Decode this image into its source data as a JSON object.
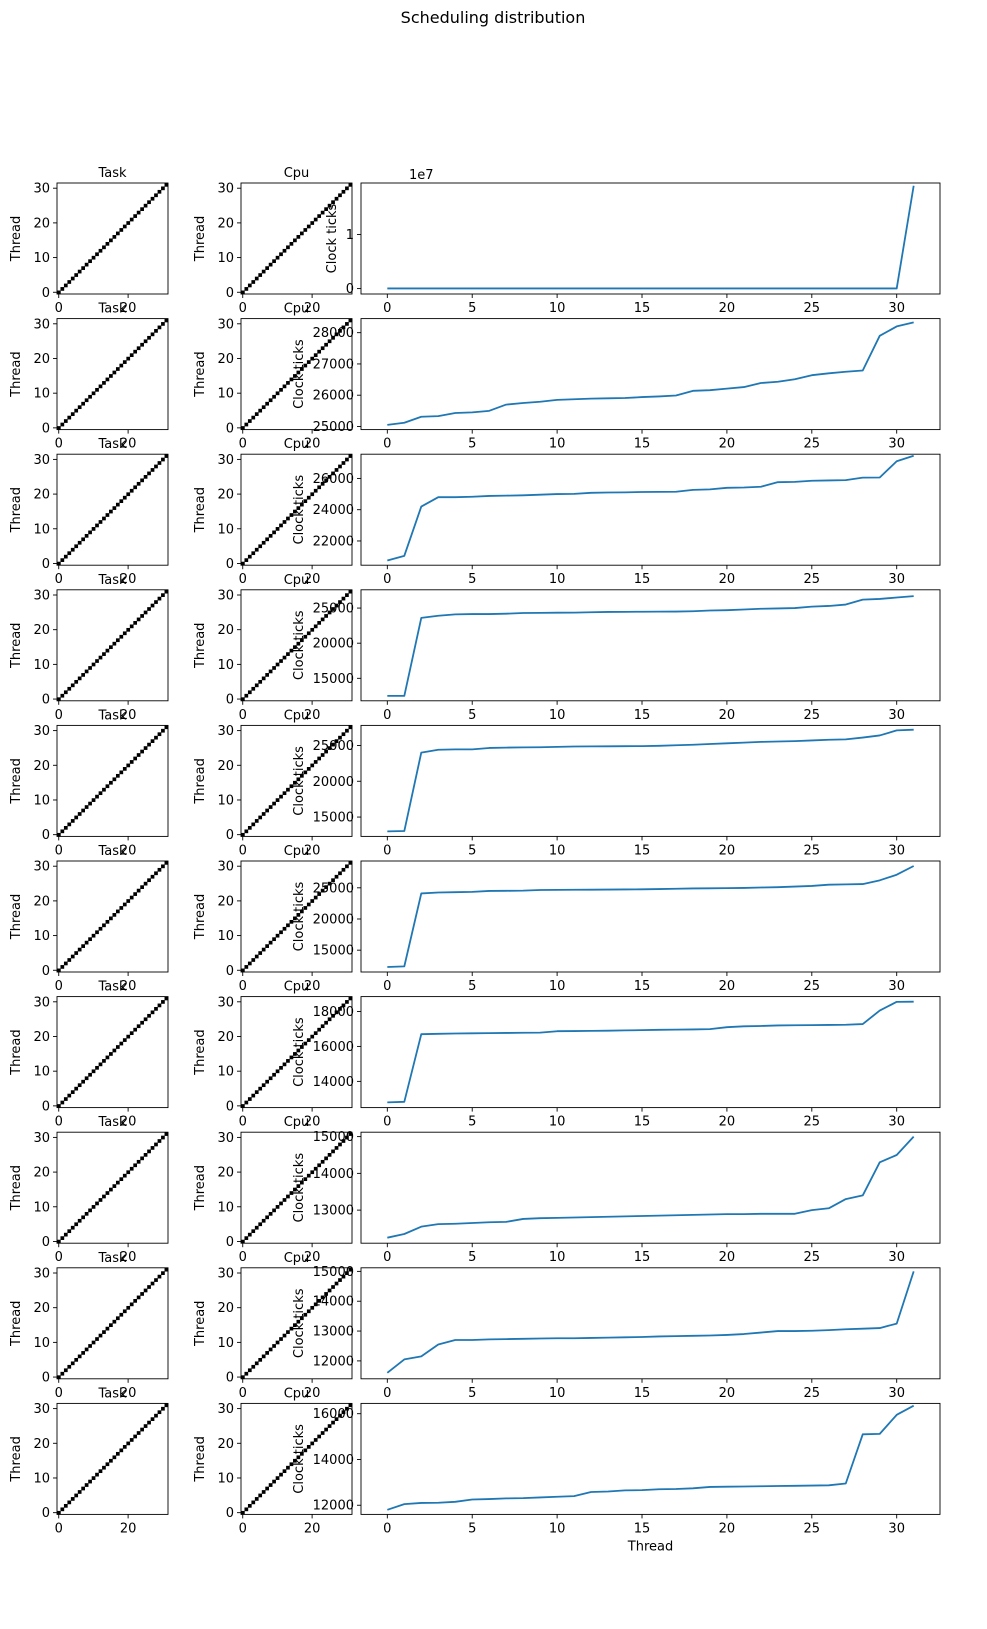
{
  "figure": {
    "suptitle": "Scheduling distribution"
  },
  "chart_data": {
    "type": "composite",
    "rows": [
      {
        "task": {
          "type": "heatmap",
          "title": "Task",
          "ylabel": "Thread",
          "matrix": "identity",
          "size": 32,
          "xticks": [
            0,
            20
          ],
          "yticks": [
            0,
            10,
            20,
            30
          ]
        },
        "cpu": {
          "type": "heatmap",
          "title": "Cpu",
          "ylabel": "Thread",
          "matrix": "identity",
          "size": 32,
          "xticks": [
            0,
            20
          ],
          "yticks": [
            0,
            10,
            20,
            30
          ]
        },
        "ticks": {
          "type": "line",
          "ylabel": "Clock ticks",
          "offset_text": "1e7",
          "ylim": [
            -0.1,
            1.95
          ],
          "yticks": [
            0,
            1
          ],
          "xlim": [
            -1.55,
            32.55
          ],
          "xticks": [
            0,
            5,
            10,
            15,
            20,
            25,
            30
          ],
          "y": [
            0.0025,
            0.0025,
            0.0025,
            0.0025,
            0.0025,
            0.0025,
            0.0025,
            0.0025,
            0.0025,
            0.0025,
            0.0025,
            0.0025,
            0.0025,
            0.0025,
            0.0025,
            0.0025,
            0.0025,
            0.0025,
            0.0025,
            0.0025,
            0.0025,
            0.0025,
            0.0025,
            0.0025,
            0.0025,
            0.0025,
            0.0025,
            0.0025,
            0.0025,
            0.0025,
            0.0025,
            1.9
          ]
        }
      },
      {
        "task": {
          "type": "heatmap",
          "title": "Task",
          "ylabel": "Thread",
          "matrix": "identity",
          "size": 32,
          "xticks": [
            0,
            20
          ],
          "yticks": [
            0,
            10,
            20,
            30
          ]
        },
        "cpu": {
          "type": "heatmap",
          "title": "Cpu",
          "ylabel": "Thread",
          "matrix": "identity",
          "size": 32,
          "xticks": [
            0,
            20
          ],
          "yticks": [
            0,
            10,
            20,
            30
          ]
        },
        "ticks": {
          "type": "line",
          "ylabel": "Clock ticks",
          "ylim": [
            24900,
            28450
          ],
          "yticks": [
            25000,
            26000,
            27000,
            28000
          ],
          "xlim": [
            -1.55,
            32.55
          ],
          "xticks": [
            0,
            5,
            10,
            15,
            20,
            25,
            30
          ],
          "y": [
            25050,
            25120,
            25310,
            25330,
            25430,
            25450,
            25500,
            25700,
            25750,
            25790,
            25850,
            25870,
            25890,
            25900,
            25910,
            25940,
            25960,
            25990,
            26140,
            26160,
            26210,
            26260,
            26390,
            26430,
            26510,
            26640,
            26700,
            26750,
            26790,
            27900,
            28200,
            28330
          ]
        }
      },
      {
        "task": {
          "type": "heatmap",
          "title": "Task",
          "ylabel": "Thread",
          "matrix": "identity",
          "size": 32,
          "xticks": [
            0,
            20
          ],
          "yticks": [
            0,
            10,
            20,
            30
          ]
        },
        "cpu": {
          "type": "heatmap",
          "title": "Cpu",
          "ylabel": "Thread",
          "matrix": "identity",
          "size": 32,
          "xticks": [
            0,
            20
          ],
          "yticks": [
            0,
            10,
            20,
            30
          ]
        },
        "ticks": {
          "type": "line",
          "ylabel": "Clock ticks",
          "ylim": [
            20450,
            27550
          ],
          "yticks": [
            22000,
            24000,
            26000
          ],
          "xlim": [
            -1.55,
            32.55
          ],
          "xticks": [
            0,
            5,
            10,
            15,
            20,
            25,
            30
          ],
          "y": [
            20750,
            21050,
            24200,
            24800,
            24800,
            24830,
            24880,
            24900,
            24920,
            24960,
            25000,
            25010,
            25080,
            25100,
            25110,
            25130,
            25140,
            25150,
            25270,
            25300,
            25400,
            25420,
            25470,
            25760,
            25780,
            25850,
            25870,
            25890,
            26050,
            26060,
            27100,
            27450
          ]
        }
      },
      {
        "task": {
          "type": "heatmap",
          "title": "Task",
          "ylabel": "Thread",
          "matrix": "identity",
          "size": 32,
          "xticks": [
            0,
            20
          ],
          "yticks": [
            0,
            10,
            20,
            30
          ]
        },
        "cpu": {
          "type": "heatmap",
          "title": "Cpu",
          "ylabel": "Thread",
          "matrix": "identity",
          "size": 32,
          "xticks": [
            0,
            20
          ],
          "yticks": [
            0,
            10,
            20,
            30
          ]
        },
        "ticks": {
          "type": "line",
          "ylabel": "Clock ticks",
          "ylim": [
            11800,
            27600
          ],
          "yticks": [
            15000,
            20000,
            25000
          ],
          "xlim": [
            -1.55,
            32.55
          ],
          "xticks": [
            0,
            5,
            10,
            15,
            20,
            25,
            30
          ],
          "y": [
            12500,
            12500,
            23600,
            23900,
            24100,
            24150,
            24150,
            24200,
            24300,
            24320,
            24340,
            24350,
            24400,
            24450,
            24460,
            24480,
            24490,
            24500,
            24550,
            24650,
            24700,
            24800,
            24900,
            24950,
            25000,
            25200,
            25300,
            25500,
            26200,
            26300,
            26500,
            26700
          ]
        }
      },
      {
        "task": {
          "type": "heatmap",
          "title": "Task",
          "ylabel": "Thread",
          "matrix": "identity",
          "size": 32,
          "xticks": [
            0,
            20
          ],
          "yticks": [
            0,
            10,
            20,
            30
          ]
        },
        "cpu": {
          "type": "heatmap",
          "title": "Cpu",
          "ylabel": "Thread",
          "matrix": "identity",
          "size": 32,
          "xticks": [
            0,
            20
          ],
          "yticks": [
            0,
            10,
            20,
            30
          ]
        },
        "ticks": {
          "type": "line",
          "ylabel": "Clock ticks",
          "ylim": [
            12300,
            27800
          ],
          "yticks": [
            15000,
            20000,
            25000
          ],
          "xlim": [
            -1.55,
            32.55
          ],
          "xticks": [
            0,
            5,
            10,
            15,
            20,
            25,
            30
          ],
          "y": [
            13000,
            13050,
            24000,
            24400,
            24450,
            24450,
            24650,
            24700,
            24730,
            24750,
            24800,
            24850,
            24870,
            24880,
            24900,
            24910,
            24950,
            25030,
            25100,
            25200,
            25300,
            25400,
            25500,
            25550,
            25600,
            25700,
            25800,
            25850,
            26100,
            26400,
            27100,
            27200
          ]
        }
      },
      {
        "task": {
          "type": "heatmap",
          "title": "Task",
          "ylabel": "Thread",
          "matrix": "identity",
          "size": 32,
          "xticks": [
            0,
            20
          ],
          "yticks": [
            0,
            10,
            20,
            30
          ]
        },
        "cpu": {
          "type": "heatmap",
          "title": "Cpu",
          "ylabel": "Thread",
          "matrix": "identity",
          "size": 32,
          "xticks": [
            0,
            20
          ],
          "yticks": [
            0,
            10,
            20,
            30
          ]
        },
        "ticks": {
          "type": "line",
          "ylabel": "Clock ticks",
          "ylim": [
            11500,
            29300
          ],
          "yticks": [
            15000,
            20000,
            25000
          ],
          "xlim": [
            -1.55,
            32.55
          ],
          "xticks": [
            0,
            5,
            10,
            15,
            20,
            25,
            30
          ],
          "y": [
            12300,
            12400,
            24100,
            24250,
            24300,
            24350,
            24500,
            24520,
            24550,
            24650,
            24670,
            24690,
            24700,
            24720,
            24740,
            24760,
            24800,
            24850,
            24900,
            24920,
            24950,
            24980,
            25050,
            25100,
            25200,
            25300,
            25500,
            25550,
            25600,
            26200,
            27100,
            28500
          ]
        }
      },
      {
        "task": {
          "type": "heatmap",
          "title": "Task",
          "ylabel": "Thread",
          "matrix": "identity",
          "size": 32,
          "xticks": [
            0,
            20
          ],
          "yticks": [
            0,
            10,
            20,
            30
          ]
        },
        "cpu": {
          "type": "heatmap",
          "title": "Cpu",
          "ylabel": "Thread",
          "matrix": "identity",
          "size": 32,
          "xticks": [
            0,
            20
          ],
          "yticks": [
            0,
            10,
            20,
            30
          ]
        },
        "ticks": {
          "type": "line",
          "ylabel": "Clock ticks",
          "ylim": [
            12500,
            18850
          ],
          "yticks": [
            14000,
            16000,
            18000
          ],
          "xlim": [
            -1.55,
            32.55
          ],
          "xticks": [
            0,
            5,
            10,
            15,
            20,
            25,
            30
          ],
          "y": [
            12800,
            12830,
            16700,
            16720,
            16740,
            16750,
            16760,
            16770,
            16780,
            16790,
            16870,
            16880,
            16890,
            16900,
            16920,
            16930,
            16950,
            16960,
            16970,
            16990,
            17100,
            17150,
            17170,
            17200,
            17210,
            17220,
            17230,
            17240,
            17280,
            18050,
            18550,
            18560
          ]
        }
      },
      {
        "task": {
          "type": "heatmap",
          "title": "Task",
          "ylabel": "Thread",
          "matrix": "identity",
          "size": 32,
          "xticks": [
            0,
            20
          ],
          "yticks": [
            0,
            10,
            20,
            30
          ]
        },
        "cpu": {
          "type": "heatmap",
          "title": "Cpu",
          "ylabel": "Thread",
          "matrix": "identity",
          "size": 32,
          "xticks": [
            0,
            20
          ],
          "yticks": [
            0,
            10,
            20,
            30
          ]
        },
        "ticks": {
          "type": "line",
          "ylabel": "Clock ticks",
          "ylim": [
            12100,
            15120
          ],
          "yticks": [
            13000,
            14000,
            15000
          ],
          "xlim": [
            -1.55,
            32.55
          ],
          "xticks": [
            0,
            5,
            10,
            15,
            20,
            25,
            30
          ],
          "y": [
            12250,
            12350,
            12550,
            12620,
            12630,
            12650,
            12670,
            12680,
            12760,
            12780,
            12790,
            12800,
            12810,
            12820,
            12830,
            12840,
            12850,
            12860,
            12870,
            12880,
            12890,
            12890,
            12900,
            12900,
            12900,
            13000,
            13050,
            13300,
            13400,
            14300,
            14500,
            15000
          ]
        }
      },
      {
        "task": {
          "type": "heatmap",
          "title": "Task",
          "ylabel": "Thread",
          "matrix": "identity",
          "size": 32,
          "xticks": [
            0,
            20
          ],
          "yticks": [
            0,
            10,
            20,
            30
          ]
        },
        "cpu": {
          "type": "heatmap",
          "title": "Cpu",
          "ylabel": "Thread",
          "matrix": "identity",
          "size": 32,
          "xticks": [
            0,
            20
          ],
          "yticks": [
            0,
            10,
            20,
            30
          ]
        },
        "ticks": {
          "type": "line",
          "ylabel": "Clock ticks",
          "ylim": [
            11400,
            15120
          ],
          "yticks": [
            12000,
            13000,
            14000,
            15000
          ],
          "xlim": [
            -1.55,
            32.55
          ],
          "xticks": [
            0,
            5,
            10,
            15,
            20,
            25,
            30
          ],
          "y": [
            11600,
            12050,
            12150,
            12550,
            12700,
            12700,
            12720,
            12730,
            12740,
            12750,
            12760,
            12760,
            12770,
            12780,
            12790,
            12800,
            12820,
            12830,
            12840,
            12850,
            12870,
            12900,
            12950,
            13000,
            13000,
            13010,
            13030,
            13060,
            13080,
            13100,
            13250,
            15000
          ]
        }
      },
      {
        "task": {
          "type": "heatmap",
          "title": "Task",
          "ylabel": "Thread",
          "matrix": "identity",
          "size": 32,
          "xticks": [
            0,
            20
          ],
          "yticks": [
            0,
            10,
            20,
            30
          ]
        },
        "cpu": {
          "type": "heatmap",
          "title": "Cpu",
          "ylabel": "Thread",
          "matrix": "identity",
          "size": 32,
          "xticks": [
            0,
            20
          ],
          "yticks": [
            0,
            10,
            20,
            30
          ]
        },
        "ticks": {
          "type": "line",
          "ylabel": "Clock ticks",
          "xlabel": "Thread",
          "ylim": [
            11600,
            16450
          ],
          "yticks": [
            12000,
            14000,
            16000
          ],
          "xlim": [
            -1.55,
            32.55
          ],
          "xticks": [
            0,
            5,
            10,
            15,
            20,
            25,
            30
          ],
          "y": [
            11800,
            12050,
            12100,
            12110,
            12150,
            12250,
            12270,
            12300,
            12310,
            12340,
            12370,
            12400,
            12580,
            12600,
            12650,
            12660,
            12700,
            12710,
            12740,
            12800,
            12810,
            12820,
            12830,
            12840,
            12850,
            12860,
            12870,
            12950,
            15100,
            15120,
            15950,
            16350
          ]
        }
      }
    ]
  }
}
